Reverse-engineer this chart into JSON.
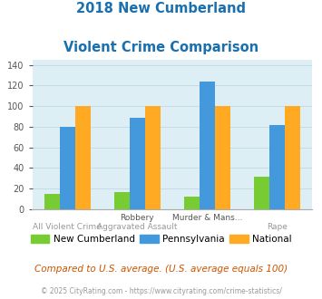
{
  "title_line1": "2018 New Cumberland",
  "title_line2": "Violent Crime Comparison",
  "title_color": "#1a6faf",
  "upper_labels": [
    "",
    "Robbery",
    "Murder & Mans...",
    ""
  ],
  "lower_labels": [
    "All Violent Crime",
    "Aggravated Assault",
    "",
    "Rape"
  ],
  "series_names": [
    "New Cumberland",
    "Pennsylvania",
    "National"
  ],
  "series_values": [
    [
      15,
      17,
      12,
      32
    ],
    [
      80,
      89,
      124,
      82
    ],
    [
      100,
      100,
      100,
      100
    ]
  ],
  "series_colors": [
    "#77cc33",
    "#4499dd",
    "#ffaa22"
  ],
  "ylim": [
    0,
    145
  ],
  "yticks": [
    0,
    20,
    40,
    60,
    80,
    100,
    120,
    140
  ],
  "plot_bg_color": "#ddeef5",
  "grid_color": "#c5dce8",
  "footer_text": "Compared to U.S. average. (U.S. average equals 100)",
  "copyright_text": "© 2025 CityRating.com - https://www.cityrating.com/crime-statistics/",
  "footer_color": "#cc5500",
  "copyright_color": "#999999",
  "bar_width": 0.22
}
